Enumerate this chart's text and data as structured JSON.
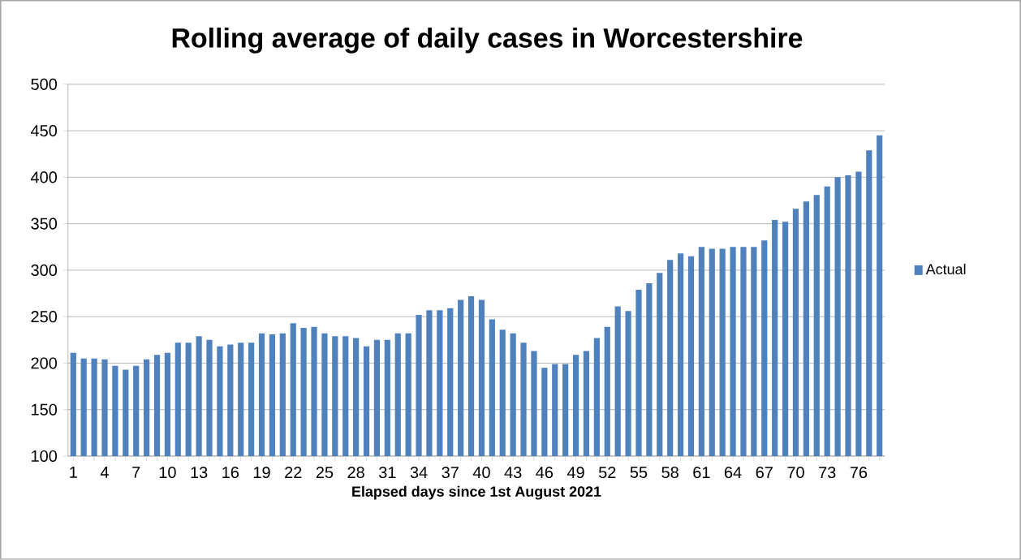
{
  "chart_data": {
    "type": "bar",
    "title": "Rolling average of daily cases in Worcestershire",
    "xlabel": "Elapsed days since 1st August 2021",
    "categories": [
      "1",
      null,
      null,
      "4",
      null,
      null,
      "7",
      null,
      null,
      "10",
      null,
      null,
      "13",
      null,
      null,
      "16",
      null,
      null,
      "19",
      null,
      null,
      "22",
      null,
      null,
      "25",
      null,
      null,
      "28",
      null,
      null,
      "31",
      null,
      null,
      "34",
      null,
      null,
      "37",
      null,
      null,
      "40",
      null,
      null,
      "43",
      null,
      null,
      "46",
      null,
      null,
      "49",
      null,
      null,
      "52",
      null,
      null,
      "55",
      null,
      null,
      "58",
      null,
      null,
      "61",
      null,
      null,
      "64",
      null,
      null,
      "67",
      null,
      null,
      "70",
      null,
      null,
      "73",
      null,
      null,
      "76",
      null,
      null
    ],
    "series": [
      {
        "name": "Actual",
        "color": "#4f81bd",
        "values": [
          211,
          205,
          205,
          204,
          197,
          193,
          197,
          204,
          209,
          211,
          222,
          222,
          229,
          225,
          218,
          220,
          222,
          222,
          232,
          231,
          232,
          243,
          238,
          239,
          232,
          229,
          229,
          227,
          218,
          225,
          225,
          232,
          232,
          252,
          257,
          257,
          259,
          268,
          272,
          268,
          247,
          236,
          232,
          222,
          213,
          195,
          199,
          199,
          209,
          213,
          227,
          239,
          261,
          256,
          279,
          286,
          297,
          311,
          318,
          315,
          325,
          323,
          323,
          325,
          325,
          325,
          332,
          354,
          352,
          366,
          374,
          381,
          390,
          400,
          402,
          406,
          429,
          445
        ]
      }
    ],
    "ylim": [
      100,
      500
    ],
    "yticks": [
      100,
      150,
      200,
      250,
      300,
      350,
      400,
      450,
      500
    ],
    "grid": "y",
    "legend": "right"
  }
}
